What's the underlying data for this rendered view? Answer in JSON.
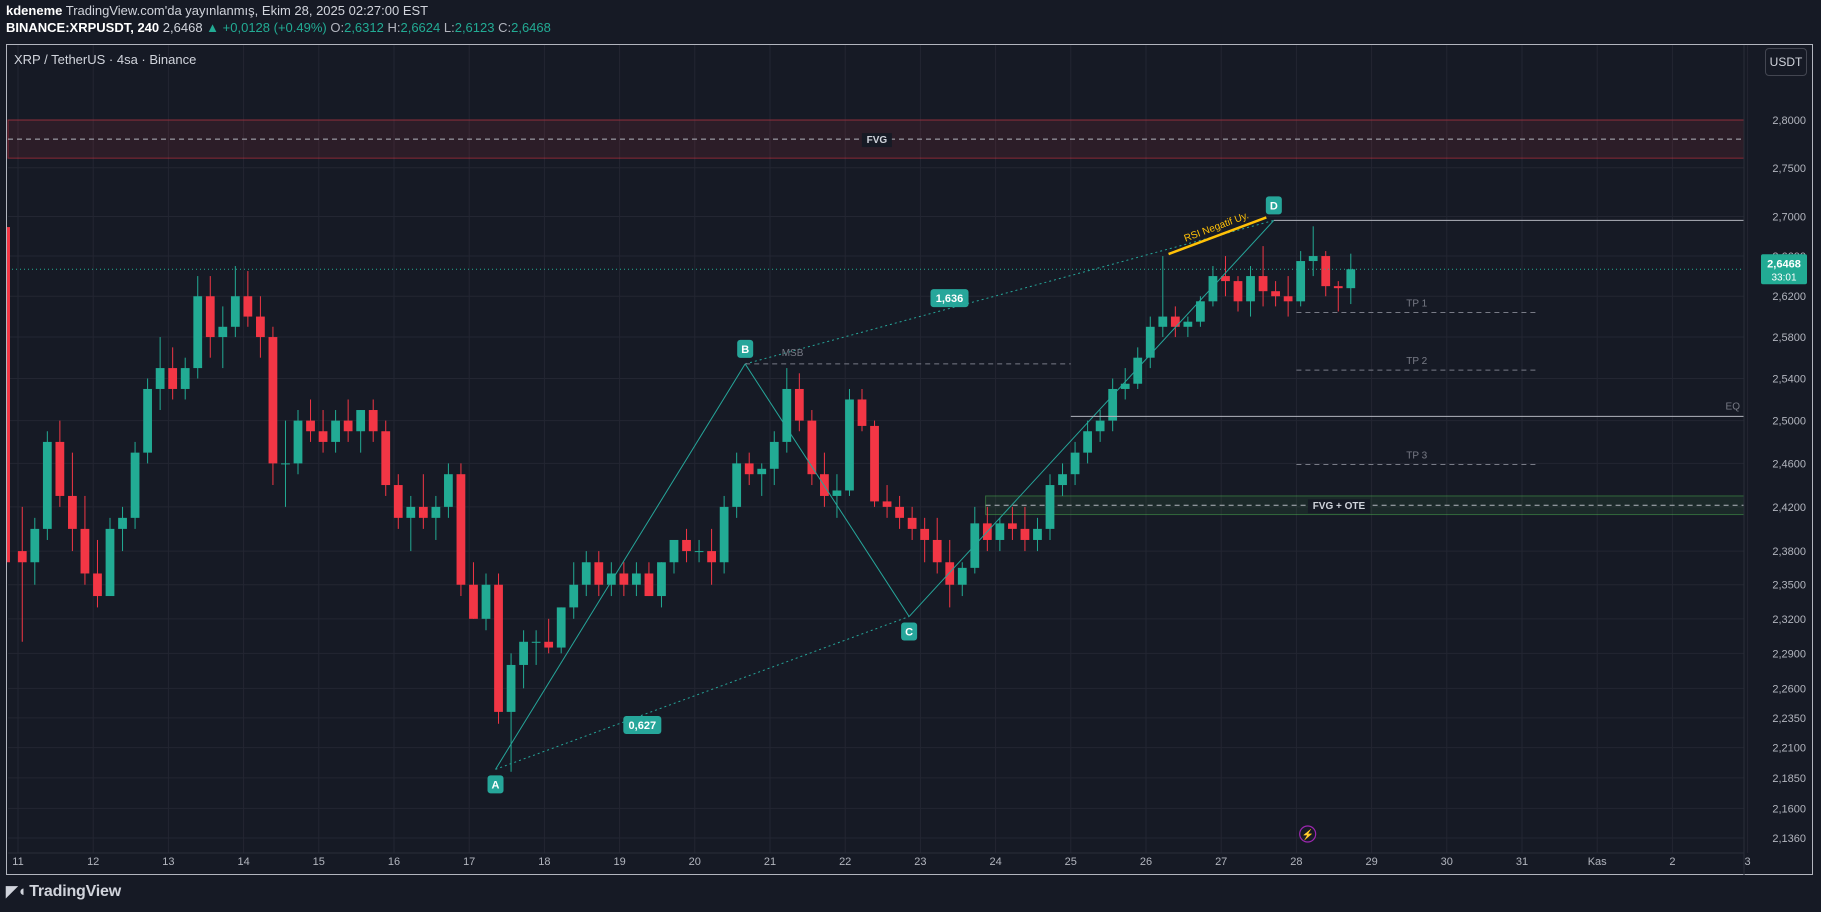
{
  "header": {
    "author": "kdeneme",
    "published": "TradingView.com'da yayınlanmış, Ekim 28, 2025 02:27:00 EST",
    "symbol_interval": "BINANCE:XRPUSDT, 240",
    "last": "2,6468",
    "change": "▲ +0,0128 (+0.49%)",
    "o_label": "O:",
    "o": "2,6312",
    "h_label": "H:",
    "h": "2,6624",
    "l_label": "L:",
    "l": "2,6123",
    "c_label": "C:",
    "c": "2,6468"
  },
  "chart_title": "XRP / TetherUS · 4sa · Binance",
  "currency_button": "USDT",
  "price_tag": {
    "price": "2,6468",
    "countdown": "33:01"
  },
  "brand": "TradingView",
  "colors": {
    "up": "#22ab94",
    "down": "#f23645",
    "background": "#161a25",
    "fib": "#26a69a",
    "rsi_line": "#ffc107",
    "fvg_top": "#f23645",
    "fvg_bottom": "#4caf50"
  },
  "chart_data": {
    "type": "candlestick",
    "x_axis": {
      "ticks": [
        "11",
        "12",
        "13",
        "14",
        "15",
        "16",
        "17",
        "18",
        "19",
        "20",
        "21",
        "22",
        "23",
        "24",
        "25",
        "26",
        "27",
        "28",
        "29",
        "30",
        "31",
        "Kas",
        "2",
        "3"
      ]
    },
    "y_axis": {
      "ticks": [
        "2,8000",
        "2,7500",
        "2,7000",
        "2,6600",
        "2,6200",
        "2,5800",
        "2,5400",
        "2,5000",
        "2,4600",
        "2,4200",
        "2,3800",
        "2,3500",
        "2,3200",
        "2,2900",
        "2,2600",
        "2,2350",
        "2,2100",
        "2,1850",
        "2,1600",
        "2,1360"
      ],
      "scale": "log",
      "range": [
        2.12,
        2.86
      ]
    },
    "bars_per_day": 6,
    "start_day": 11,
    "candles": [
      [
        2.38,
        2.42,
        2.3,
        2.37
      ],
      [
        2.37,
        2.41,
        2.35,
        2.4
      ],
      [
        2.4,
        2.49,
        2.39,
        2.48
      ],
      [
        2.48,
        2.5,
        2.42,
        2.43
      ],
      [
        2.43,
        2.47,
        2.38,
        2.4
      ],
      [
        2.4,
        2.43,
        2.35,
        2.36
      ],
      [
        2.36,
        2.39,
        2.33,
        2.34
      ],
      [
        2.34,
        2.41,
        2.34,
        2.4
      ],
      [
        2.4,
        2.42,
        2.38,
        2.41
      ],
      [
        2.41,
        2.48,
        2.4,
        2.47
      ],
      [
        2.47,
        2.54,
        2.46,
        2.53
      ],
      [
        2.53,
        2.58,
        2.51,
        2.55
      ],
      [
        2.55,
        2.57,
        2.52,
        2.53
      ],
      [
        2.53,
        2.56,
        2.52,
        2.55
      ],
      [
        2.55,
        2.64,
        2.54,
        2.62
      ],
      [
        2.62,
        2.64,
        2.56,
        2.58
      ],
      [
        2.58,
        2.61,
        2.55,
        2.59
      ],
      [
        2.59,
        2.65,
        2.58,
        2.62
      ],
      [
        2.62,
        2.645,
        2.59,
        2.6
      ],
      [
        2.6,
        2.62,
        2.56,
        2.58
      ],
      [
        2.58,
        2.59,
        2.44,
        2.46
      ],
      [
        2.46,
        2.5,
        2.42,
        2.46
      ],
      [
        2.46,
        2.51,
        2.45,
        2.5
      ],
      [
        2.5,
        2.52,
        2.48,
        2.49
      ],
      [
        2.49,
        2.51,
        2.47,
        2.48
      ],
      [
        2.48,
        2.51,
        2.47,
        2.5
      ],
      [
        2.5,
        2.52,
        2.48,
        2.49
      ],
      [
        2.49,
        2.51,
        2.47,
        2.51
      ],
      [
        2.51,
        2.52,
        2.48,
        2.49
      ],
      [
        2.49,
        2.5,
        2.43,
        2.44
      ],
      [
        2.44,
        2.45,
        2.4,
        2.41
      ],
      [
        2.41,
        2.43,
        2.38,
        2.42
      ],
      [
        2.42,
        2.45,
        2.4,
        2.41
      ],
      [
        2.41,
        2.43,
        2.39,
        2.42
      ],
      [
        2.42,
        2.46,
        2.41,
        2.45
      ],
      [
        2.45,
        2.46,
        2.34,
        2.35
      ],
      [
        2.35,
        2.37,
        2.32,
        2.32
      ],
      [
        2.32,
        2.36,
        2.31,
        2.35
      ],
      [
        2.35,
        2.36,
        2.23,
        2.24
      ],
      [
        2.24,
        2.29,
        2.19,
        2.28
      ],
      [
        2.28,
        2.31,
        2.26,
        2.3
      ],
      [
        2.3,
        2.31,
        2.28,
        2.3
      ],
      [
        2.3,
        2.32,
        2.29,
        2.295
      ],
      [
        2.295,
        2.33,
        2.29,
        2.33
      ],
      [
        2.33,
        2.37,
        2.32,
        2.35
      ],
      [
        2.35,
        2.38,
        2.34,
        2.37
      ],
      [
        2.37,
        2.38,
        2.34,
        2.35
      ],
      [
        2.35,
        2.37,
        2.34,
        2.36
      ],
      [
        2.36,
        2.37,
        2.34,
        2.35
      ],
      [
        2.35,
        2.37,
        2.34,
        2.36
      ],
      [
        2.36,
        2.37,
        2.34,
        2.34
      ],
      [
        2.34,
        2.37,
        2.33,
        2.37
      ],
      [
        2.37,
        2.39,
        2.36,
        2.39
      ],
      [
        2.39,
        2.4,
        2.37,
        2.38
      ],
      [
        2.38,
        2.39,
        2.37,
        2.38
      ],
      [
        2.38,
        2.4,
        2.35,
        2.37
      ],
      [
        2.37,
        2.43,
        2.36,
        2.42
      ],
      [
        2.42,
        2.47,
        2.41,
        2.46
      ],
      [
        2.46,
        2.47,
        2.44,
        2.45
      ],
      [
        2.45,
        2.46,
        2.43,
        2.455
      ],
      [
        2.455,
        2.49,
        2.44,
        2.48
      ],
      [
        2.48,
        2.55,
        2.47,
        2.53
      ],
      [
        2.53,
        2.545,
        2.49,
        2.5
      ],
      [
        2.5,
        2.51,
        2.44,
        2.45
      ],
      [
        2.45,
        2.47,
        2.42,
        2.43
      ],
      [
        2.43,
        2.45,
        2.41,
        2.435
      ],
      [
        2.435,
        2.53,
        2.43,
        2.52
      ],
      [
        2.52,
        2.53,
        2.49,
        2.495
      ],
      [
        2.495,
        2.5,
        2.42,
        2.425
      ],
      [
        2.425,
        2.44,
        2.41,
        2.42
      ],
      [
        2.42,
        2.43,
        2.4,
        2.41
      ],
      [
        2.41,
        2.42,
        2.39,
        2.4
      ],
      [
        2.4,
        2.41,
        2.37,
        2.39
      ],
      [
        2.39,
        2.41,
        2.36,
        2.37
      ],
      [
        2.37,
        2.39,
        2.33,
        2.35
      ],
      [
        2.35,
        2.37,
        2.34,
        2.365
      ],
      [
        2.365,
        2.42,
        2.36,
        2.405
      ],
      [
        2.405,
        2.42,
        2.38,
        2.39
      ],
      [
        2.39,
        2.41,
        2.38,
        2.405
      ],
      [
        2.405,
        2.42,
        2.39,
        2.4
      ],
      [
        2.4,
        2.42,
        2.38,
        2.39
      ],
      [
        2.39,
        2.41,
        2.38,
        2.4
      ],
      [
        2.4,
        2.45,
        2.39,
        2.44
      ],
      [
        2.44,
        2.46,
        2.43,
        2.45
      ],
      [
        2.45,
        2.48,
        2.44,
        2.47
      ],
      [
        2.47,
        2.5,
        2.46,
        2.49
      ],
      [
        2.49,
        2.51,
        2.48,
        2.5
      ],
      [
        2.5,
        2.54,
        2.49,
        2.53
      ],
      [
        2.53,
        2.55,
        2.52,
        2.535
      ],
      [
        2.535,
        2.57,
        2.53,
        2.56
      ],
      [
        2.56,
        2.6,
        2.55,
        2.59
      ],
      [
        2.59,
        2.66,
        2.58,
        2.6
      ],
      [
        2.6,
        2.61,
        2.58,
        2.59
      ],
      [
        2.59,
        2.6,
        2.58,
        2.595
      ],
      [
        2.595,
        2.62,
        2.59,
        2.615
      ],
      [
        2.615,
        2.65,
        2.61,
        2.64
      ],
      [
        2.64,
        2.66,
        2.62,
        2.635
      ],
      [
        2.635,
        2.64,
        2.605,
        2.615
      ],
      [
        2.615,
        2.65,
        2.6,
        2.64
      ],
      [
        2.64,
        2.67,
        2.61,
        2.625
      ],
      [
        2.625,
        2.635,
        2.61,
        2.62
      ],
      [
        2.62,
        2.64,
        2.6,
        2.615
      ],
      [
        2.615,
        2.665,
        2.61,
        2.655
      ],
      [
        2.655,
        2.69,
        2.64,
        2.66
      ],
      [
        2.66,
        2.665,
        2.62,
        2.63
      ],
      [
        2.63,
        2.635,
        2.605,
        2.628
      ],
      [
        2.628,
        2.6624,
        2.6123,
        2.6468
      ]
    ]
  },
  "annotations": {
    "point_a": "A",
    "point_b": "B",
    "point_c": "C",
    "point_d": "D",
    "ratio_ac": "0,627",
    "ratio_bd": "1,636",
    "rsi_label": "RSI Negatif Uy.",
    "fvg_top": "FVG",
    "fvg_ote": "FVG + OTE",
    "msb": "MSB",
    "eq": "EQ",
    "tp1": "TP 1",
    "tp2": "TP 2",
    "tp3": "TP 3",
    "lightning_icon": "⚡"
  }
}
